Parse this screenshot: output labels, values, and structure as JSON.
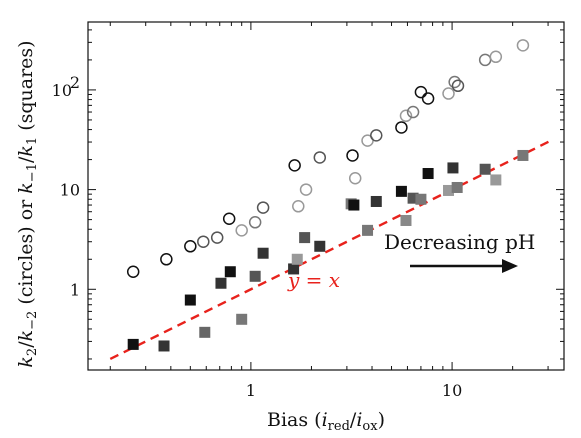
{
  "chart_data": {
    "type": "scatter",
    "title": "",
    "xlabel": "Bias (i_red/i_ox)",
    "ylabel": "k_2/k_-2 (circles) or k_-1/k_1 (squares)",
    "xscale": "log",
    "yscale": "log",
    "xlim": [
      0.155,
      36
    ],
    "ylim": [
      0.155,
      480
    ],
    "x_ticks": [
      {
        "value": 1,
        "label": "1"
      },
      {
        "value": 10,
        "label": "10"
      }
    ],
    "y_ticks": [
      {
        "value": 1,
        "label": "1"
      },
      {
        "value": 10,
        "label": "10"
      },
      {
        "value": 100,
        "label": "10",
        "sup": "2"
      }
    ],
    "grid": false,
    "series": [
      {
        "marker": "circle",
        "values": [
          {
            "x": 0.26,
            "y": 1.5,
            "color": "#111111"
          },
          {
            "x": 0.38,
            "y": 2.0,
            "color": "#111111"
          },
          {
            "x": 0.5,
            "y": 2.7,
            "color": "#111111"
          },
          {
            "x": 0.58,
            "y": 3.0,
            "color": "#555555"
          },
          {
            "x": 0.68,
            "y": 3.3,
            "color": "#555555"
          },
          {
            "x": 0.78,
            "y": 5.1,
            "color": "#111111"
          },
          {
            "x": 0.9,
            "y": 3.9,
            "color": "#999999"
          },
          {
            "x": 1.05,
            "y": 4.7,
            "color": "#777777"
          },
          {
            "x": 1.15,
            "y": 6.6,
            "color": "#555555"
          },
          {
            "x": 1.65,
            "y": 17.5,
            "color": "#111111"
          },
          {
            "x": 1.72,
            "y": 6.8,
            "color": "#999999"
          },
          {
            "x": 1.88,
            "y": 10.0,
            "color": "#999999"
          },
          {
            "x": 2.2,
            "y": 21.0,
            "color": "#555555"
          },
          {
            "x": 3.2,
            "y": 22.0,
            "color": "#111111"
          },
          {
            "x": 3.3,
            "y": 13.0,
            "color": "#999999"
          },
          {
            "x": 3.8,
            "y": 31.0,
            "color": "#999999"
          },
          {
            "x": 4.2,
            "y": 35.0,
            "color": "#555555"
          },
          {
            "x": 5.6,
            "y": 42.0,
            "color": "#111111"
          },
          {
            "x": 5.9,
            "y": 55.0,
            "color": "#999999"
          },
          {
            "x": 6.4,
            "y": 60.0,
            "color": "#777777"
          },
          {
            "x": 7.0,
            "y": 95.0,
            "color": "#111111"
          },
          {
            "x": 7.6,
            "y": 82.0,
            "color": "#111111"
          },
          {
            "x": 9.6,
            "y": 92.0,
            "color": "#999999"
          },
          {
            "x": 10.3,
            "y": 120.0,
            "color": "#777777"
          },
          {
            "x": 10.7,
            "y": 110.0,
            "color": "#555555"
          },
          {
            "x": 14.6,
            "y": 200.0,
            "color": "#777777"
          },
          {
            "x": 16.5,
            "y": 215.0,
            "color": "#999999"
          },
          {
            "x": 22.5,
            "y": 280.0,
            "color": "#999999"
          }
        ]
      },
      {
        "marker": "square",
        "values": [
          {
            "x": 0.26,
            "y": 0.28,
            "color": "#111111"
          },
          {
            "x": 0.37,
            "y": 0.27,
            "color": "#333333"
          },
          {
            "x": 0.5,
            "y": 0.78,
            "color": "#111111"
          },
          {
            "x": 0.59,
            "y": 0.37,
            "color": "#666666"
          },
          {
            "x": 0.71,
            "y": 1.15,
            "color": "#333333"
          },
          {
            "x": 0.79,
            "y": 1.5,
            "color": "#111111"
          },
          {
            "x": 0.9,
            "y": 0.5,
            "color": "#777777"
          },
          {
            "x": 1.05,
            "y": 1.35,
            "color": "#555555"
          },
          {
            "x": 1.15,
            "y": 2.3,
            "color": "#333333"
          },
          {
            "x": 1.63,
            "y": 1.6,
            "color": "#333333"
          },
          {
            "x": 1.7,
            "y": 2.0,
            "color": "#999999"
          },
          {
            "x": 1.85,
            "y": 3.3,
            "color": "#555555"
          },
          {
            "x": 2.2,
            "y": 2.7,
            "color": "#333333"
          },
          {
            "x": 3.15,
            "y": 7.2,
            "color": "#777777"
          },
          {
            "x": 3.25,
            "y": 7.0,
            "color": "#111111"
          },
          {
            "x": 3.8,
            "y": 3.9,
            "color": "#777777"
          },
          {
            "x": 4.2,
            "y": 7.6,
            "color": "#333333"
          },
          {
            "x": 5.6,
            "y": 9.6,
            "color": "#111111"
          },
          {
            "x": 5.9,
            "y": 4.9,
            "color": "#888888"
          },
          {
            "x": 6.4,
            "y": 8.2,
            "color": "#555555"
          },
          {
            "x": 7.0,
            "y": 8.0,
            "color": "#777777"
          },
          {
            "x": 7.6,
            "y": 14.5,
            "color": "#111111"
          },
          {
            "x": 9.6,
            "y": 9.8,
            "color": "#999999"
          },
          {
            "x": 10.1,
            "y": 16.5,
            "color": "#333333"
          },
          {
            "x": 10.6,
            "y": 10.5,
            "color": "#777777"
          },
          {
            "x": 14.6,
            "y": 16.0,
            "color": "#555555"
          },
          {
            "x": 16.5,
            "y": 12.5,
            "color": "#999999"
          },
          {
            "x": 22.5,
            "y": 22.0,
            "color": "#777777"
          }
        ]
      }
    ],
    "reference_line": {
      "label": "y = x",
      "x": [
        0.2,
        32
      ],
      "y": [
        0.2,
        32
      ],
      "color": "#e8221c",
      "style": "dashed"
    },
    "annotations": [
      {
        "text": "Decreasing pH",
        "arrow": "right",
        "color": "#111111"
      }
    ]
  }
}
